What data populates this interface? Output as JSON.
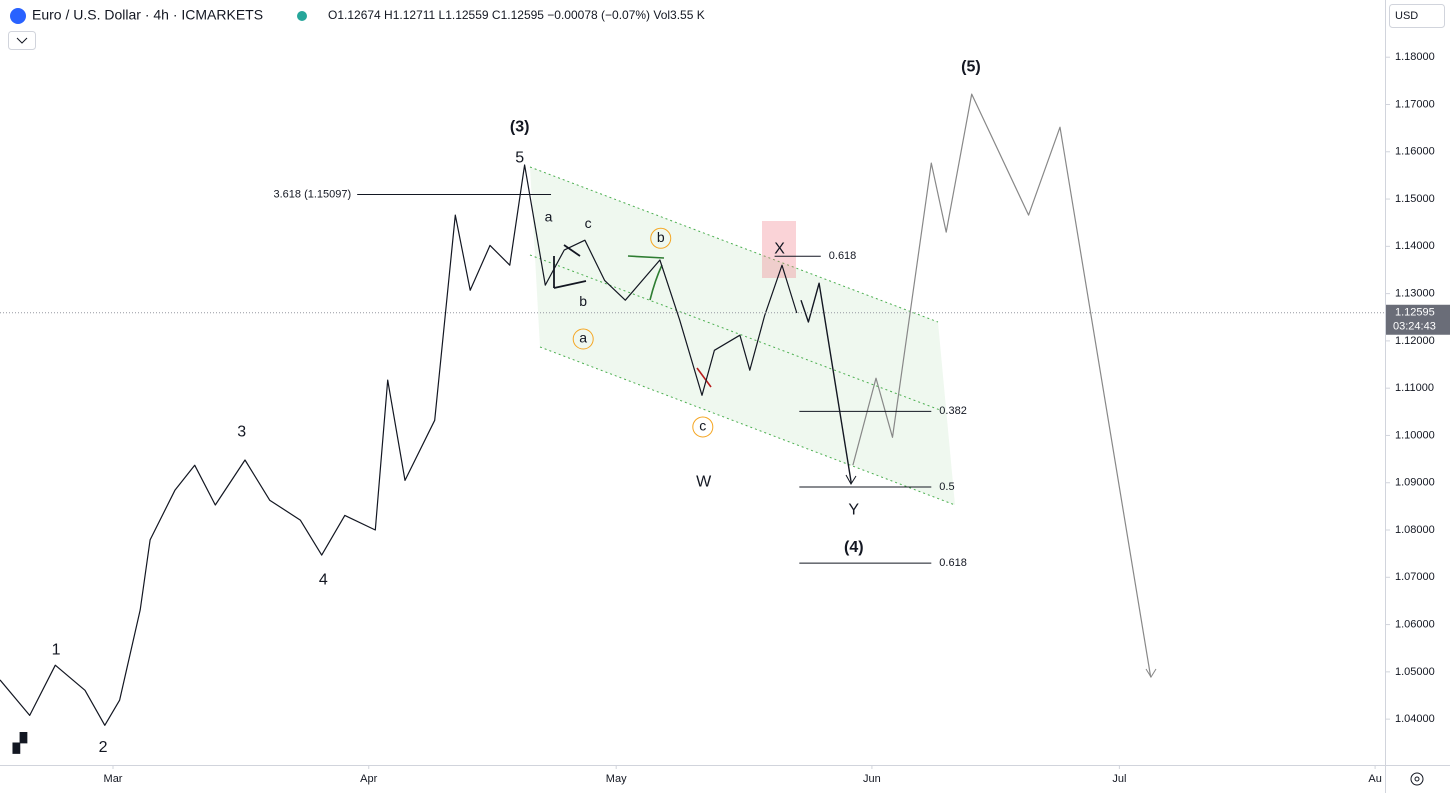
{
  "header": {
    "symbol": "Euro / U.S. Dollar · 4h · ICMARKETS",
    "ohlc": "O1.12674 H1.12711 L1.12559 C1.12595 −0.00078 (−0.07%) Vol3.55 K",
    "currency": "USD"
  },
  "chart_data": {
    "type": "line",
    "xlim": [
      -13.7,
      154.2
    ],
    "ylim": [
      1.0303,
      1.1921
    ],
    "xticks": [
      {
        "value": 0,
        "label": "Mar"
      },
      {
        "value": 31,
        "label": "Apr"
      },
      {
        "value": 61,
        "label": "May"
      },
      {
        "value": 92,
        "label": "Jun"
      },
      {
        "value": 122,
        "label": "Jul"
      },
      {
        "value": 153,
        "label": "Au"
      }
    ],
    "yticks": [
      {
        "value": 1.04,
        "label": "1.04000"
      },
      {
        "value": 1.05,
        "label": "1.05000"
      },
      {
        "value": 1.06,
        "label": "1.06000"
      },
      {
        "value": 1.07,
        "label": "1.07000"
      },
      {
        "value": 1.08,
        "label": "1.08000"
      },
      {
        "value": 1.09,
        "label": "1.09000"
      },
      {
        "value": 1.1,
        "label": "1.10000"
      },
      {
        "value": 1.11,
        "label": "1.11000"
      },
      {
        "value": 1.12,
        "label": "1.12000"
      },
      {
        "value": 1.13,
        "label": "1.13000"
      },
      {
        "value": 1.14,
        "label": "1.14000"
      },
      {
        "value": 1.15,
        "label": "1.15000"
      },
      {
        "value": 1.16,
        "label": "1.16000"
      },
      {
        "value": 1.17,
        "label": "1.17000"
      },
      {
        "value": 1.18,
        "label": "1.18000"
      }
    ],
    "series": [
      {
        "color": "#131722",
        "width": 1.2,
        "x": [
          -13.7,
          -10.1,
          -7.0,
          -3.4,
          -1.0,
          0.8,
          3.3,
          4.5,
          7.5,
          9.9,
          12.4,
          16.0,
          19.0,
          22.7,
          25.3,
          28.1,
          31.8,
          33.3,
          35.4,
          39.0,
          41.5,
          43.3,
          45.7,
          48.1,
          49.9,
          52.4,
          54.7,
          57.2,
          59.6,
          62.1,
          66.3,
          68.7,
          71.4,
          72.9,
          76.0,
          77.2,
          79.0,
          81.1,
          82.9
        ],
        "values": [
          1.0483,
          1.0408,
          1.0514,
          1.0461,
          1.0387,
          1.044,
          1.0631,
          1.0779,
          1.0884,
          1.0937,
          1.0853,
          1.0948,
          1.0863,
          1.0821,
          1.0747,
          1.0831,
          1.08,
          1.1117,
          1.0905,
          1.1032,
          1.1466,
          1.1307,
          1.1402,
          1.136,
          1.1572,
          1.1318,
          1.1392,
          1.1413,
          1.1328,
          1.1286,
          1.1371,
          1.1244,
          1.1085,
          1.118,
          1.1212,
          1.1138,
          1.1254,
          1.136,
          1.1259
        ]
      },
      {
        "color": "#131722",
        "width": 1.4,
        "x": [
          83.4,
          84.3,
          85.6,
          89.5
        ],
        "values": [
          1.1286,
          1.124,
          1.1322,
          1.0899
        ]
      },
      {
        "color": "#888888",
        "width": 1.2,
        "x": [
          89.7,
          92.5,
          94.5,
          99.2,
          101.0,
          104.1,
          111.0,
          114.8,
          125.8
        ],
        "values": [
          1.0937,
          1.1121,
          1.0996,
          1.1576,
          1.143,
          1.1722,
          1.1466,
          1.1652,
          1.0489
        ]
      }
    ],
    "last_price": 1.12595,
    "countdown": "03:24:43",
    "fib_levels": [
      {
        "label": "3.618 (1.15097)",
        "value": 1.15097,
        "x": [
          29.6,
          53.1
        ],
        "label_side": "left"
      },
      {
        "label": "0.618",
        "value": 1.1379,
        "x": [
          80.2,
          85.8
        ],
        "label_side": "right"
      },
      {
        "label": "0.382",
        "value": 1.1051,
        "x": [
          83.2,
          99.2
        ],
        "label_side": "right"
      },
      {
        "label": "0.5",
        "value": 1.0891,
        "x": [
          83.2,
          99.2
        ],
        "label_side": "right"
      },
      {
        "label": "0.618",
        "value": 1.073,
        "x": [
          83.2,
          99.2
        ],
        "label_side": "right"
      }
    ],
    "annotations": [
      {
        "text": "1",
        "x": -6.9,
        "y": 1.0546,
        "color": "#131722",
        "circled": false
      },
      {
        "text": "2",
        "x": -1.2,
        "y": 1.0339,
        "color": "#131722",
        "circled": false
      },
      {
        "text": "3",
        "x": 15.6,
        "y": 1.1007,
        "color": "#131722",
        "circled": false
      },
      {
        "text": "4",
        "x": 25.5,
        "y": 1.0694,
        "color": "#131722",
        "circled": false
      },
      {
        "text": "5",
        "x": 49.3,
        "y": 1.1586,
        "color": "#131722",
        "circled": false
      },
      {
        "text": "(3)",
        "x": 49.3,
        "y": 1.1652,
        "color": "#4caf50",
        "circled": false
      },
      {
        "text": "a",
        "x": 52.8,
        "y": 1.146,
        "color": "#131722",
        "circled": false
      },
      {
        "text": "b",
        "x": 57.0,
        "y": 1.1282,
        "color": "#131722",
        "circled": false
      },
      {
        "text": "c",
        "x": 57.6,
        "y": 1.1447,
        "color": "#131722",
        "circled": false
      },
      {
        "text": "b",
        "x": 66.4,
        "y": 1.1417,
        "color": "#f5a623",
        "circled": true
      },
      {
        "text": "a",
        "x": 57.0,
        "y": 1.1204,
        "color": "#f5a623",
        "circled": true
      },
      {
        "text": "c",
        "x": 71.5,
        "y": 1.1018,
        "color": "#f5a623",
        "circled": true
      },
      {
        "text": "X",
        "x": 80.8,
        "y": 1.1394,
        "color": "#131722",
        "circled": false
      },
      {
        "text": "W",
        "x": 71.6,
        "y": 1.0901,
        "color": "#131722",
        "circled": false
      },
      {
        "text": "Y",
        "x": 89.8,
        "y": 1.0842,
        "color": "#131722",
        "circled": false
      },
      {
        "text": "(4)",
        "x": 89.8,
        "y": 1.0762,
        "color": "#4caf50",
        "circled": false
      },
      {
        "text": "(5)",
        "x": 104.0,
        "y": 1.1779,
        "color": "#4caf50",
        "circled": false
      }
    ]
  }
}
